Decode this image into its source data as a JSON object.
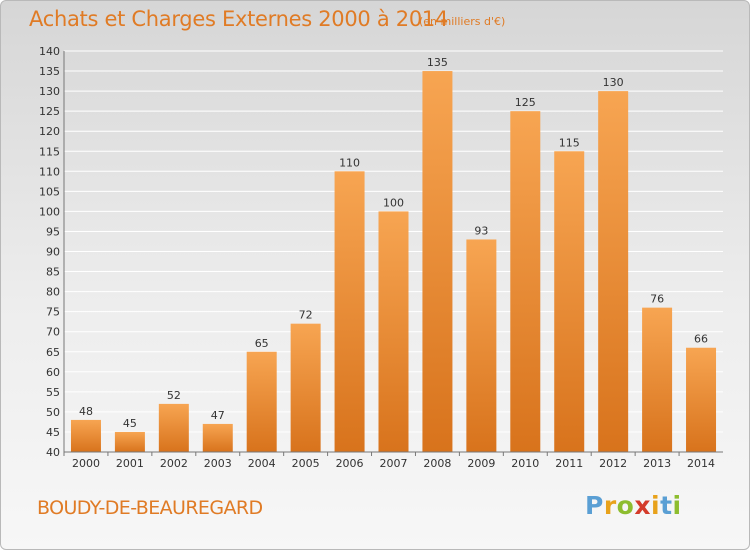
{
  "chart_data": {
    "type": "bar",
    "title": "Achats et Charges Externes 2000 à 2014",
    "unit_note": "(en milliers d'€)",
    "categories": [
      "2000",
      "2001",
      "2002",
      "2003",
      "2004",
      "2005",
      "2006",
      "2007",
      "2008",
      "2009",
      "2010",
      "2011",
      "2012",
      "2013",
      "2014"
    ],
    "values": [
      48,
      45,
      52,
      47,
      65,
      72,
      110,
      100,
      135,
      93,
      125,
      115,
      130,
      76,
      66
    ],
    "ylim": [
      40,
      140
    ],
    "yticks": [
      40,
      45,
      50,
      55,
      60,
      65,
      70,
      75,
      80,
      85,
      90,
      95,
      100,
      105,
      110,
      115,
      120,
      125,
      130,
      135,
      140
    ],
    "grid": true,
    "data_labels": true,
    "colors": {
      "bar_light": "#f7a552",
      "bar_dark": "#d8731c",
      "text": "#e07b25",
      "grid": "#ffffff"
    }
  },
  "footer": {
    "commune": "BOUDY-DE-BEAUREGARD",
    "logo": [
      "P",
      "r",
      "o",
      "x",
      "i",
      "t",
      "i"
    ]
  }
}
